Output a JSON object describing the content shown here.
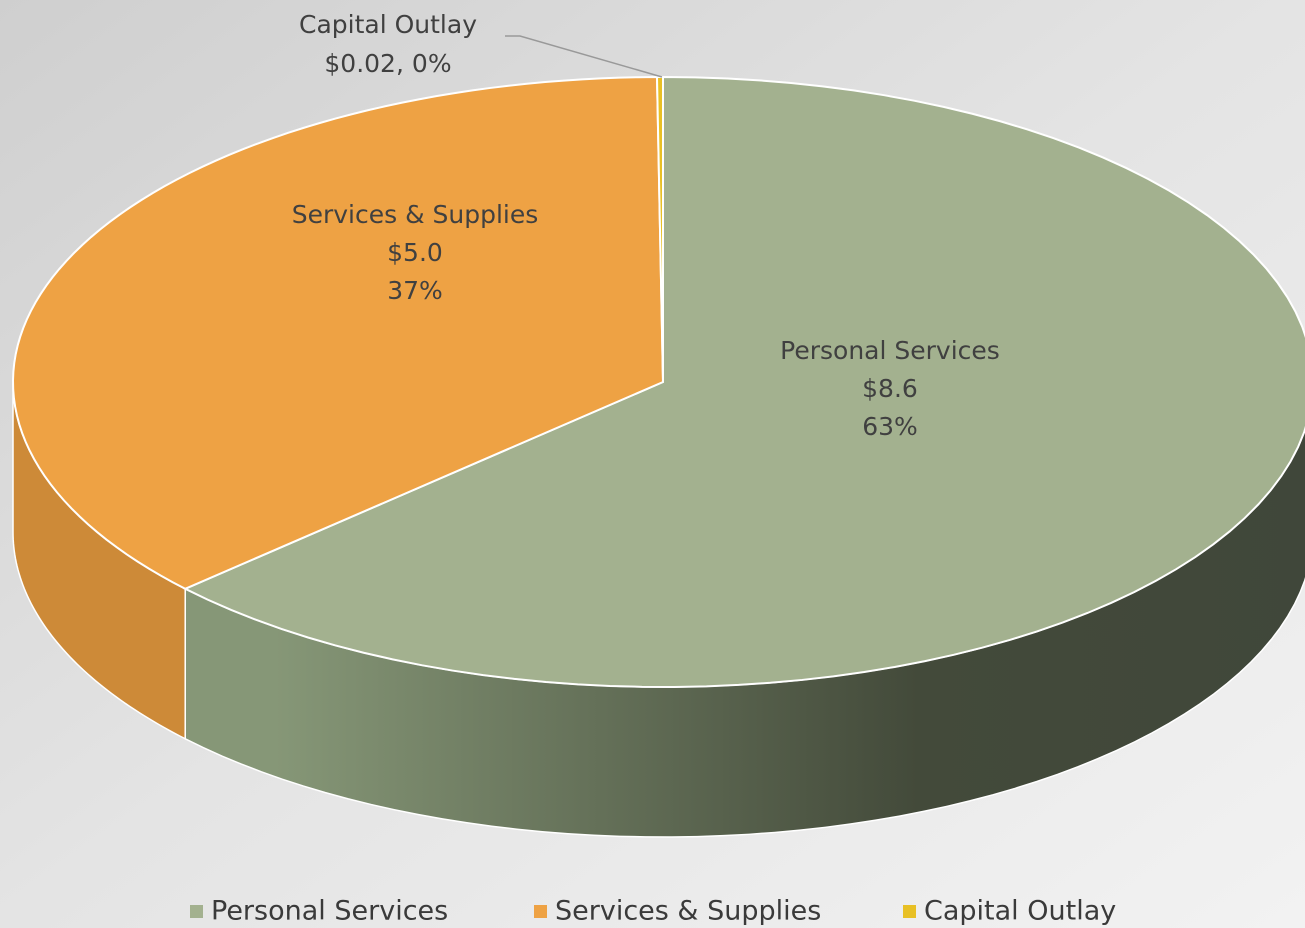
{
  "chart_data": {
    "type": "pie",
    "categories": [
      "Personal Services",
      "Services & Supplies",
      "Capital Outlay"
    ],
    "values": [
      8.6,
      5.0,
      0.02
    ],
    "value_labels": [
      "$8.6",
      "$5.0",
      "$0.02,"
    ],
    "percents": [
      63,
      37,
      0
    ],
    "percent_labels": [
      "63%",
      "37%",
      "0%"
    ],
    "colors": [
      "#a3b18f",
      "#eea244",
      "#e8c025"
    ],
    "side_colors": [
      "#5e6a50",
      "#cd8a38",
      "#c9a21a"
    ],
    "legend": "bottom"
  }
}
